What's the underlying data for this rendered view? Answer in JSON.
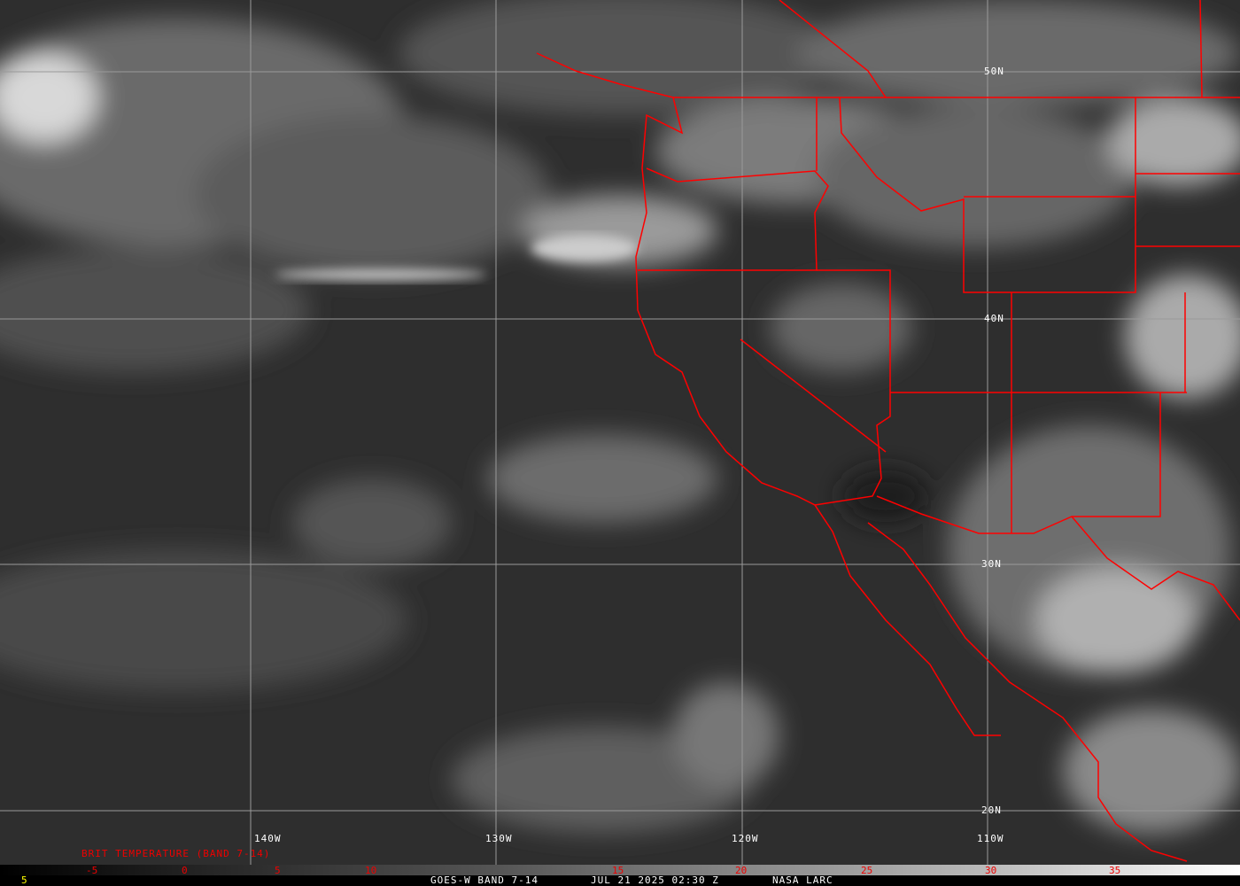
{
  "map": {
    "background_color": "#2e2e2e",
    "border_color": "#ff0000",
    "grid_color": "#9a9a9a",
    "longitude_labels": [
      "140W",
      "130W",
      "120W",
      "110W"
    ],
    "latitude_labels": [
      "50N",
      "40N",
      "30N",
      "20N"
    ]
  },
  "legend": {
    "title": "BRIT TEMPERATURE (BAND 7-14)",
    "ticks": [
      "-5",
      "0",
      "5",
      "10",
      "15",
      "20",
      "25",
      "30",
      "35"
    ],
    "left_value": "5"
  },
  "footer": {
    "satellite": "GOES-W BAND 7-14",
    "datetime": "JUL 21 2025 02:30 Z",
    "source": "NASA LARC"
  }
}
